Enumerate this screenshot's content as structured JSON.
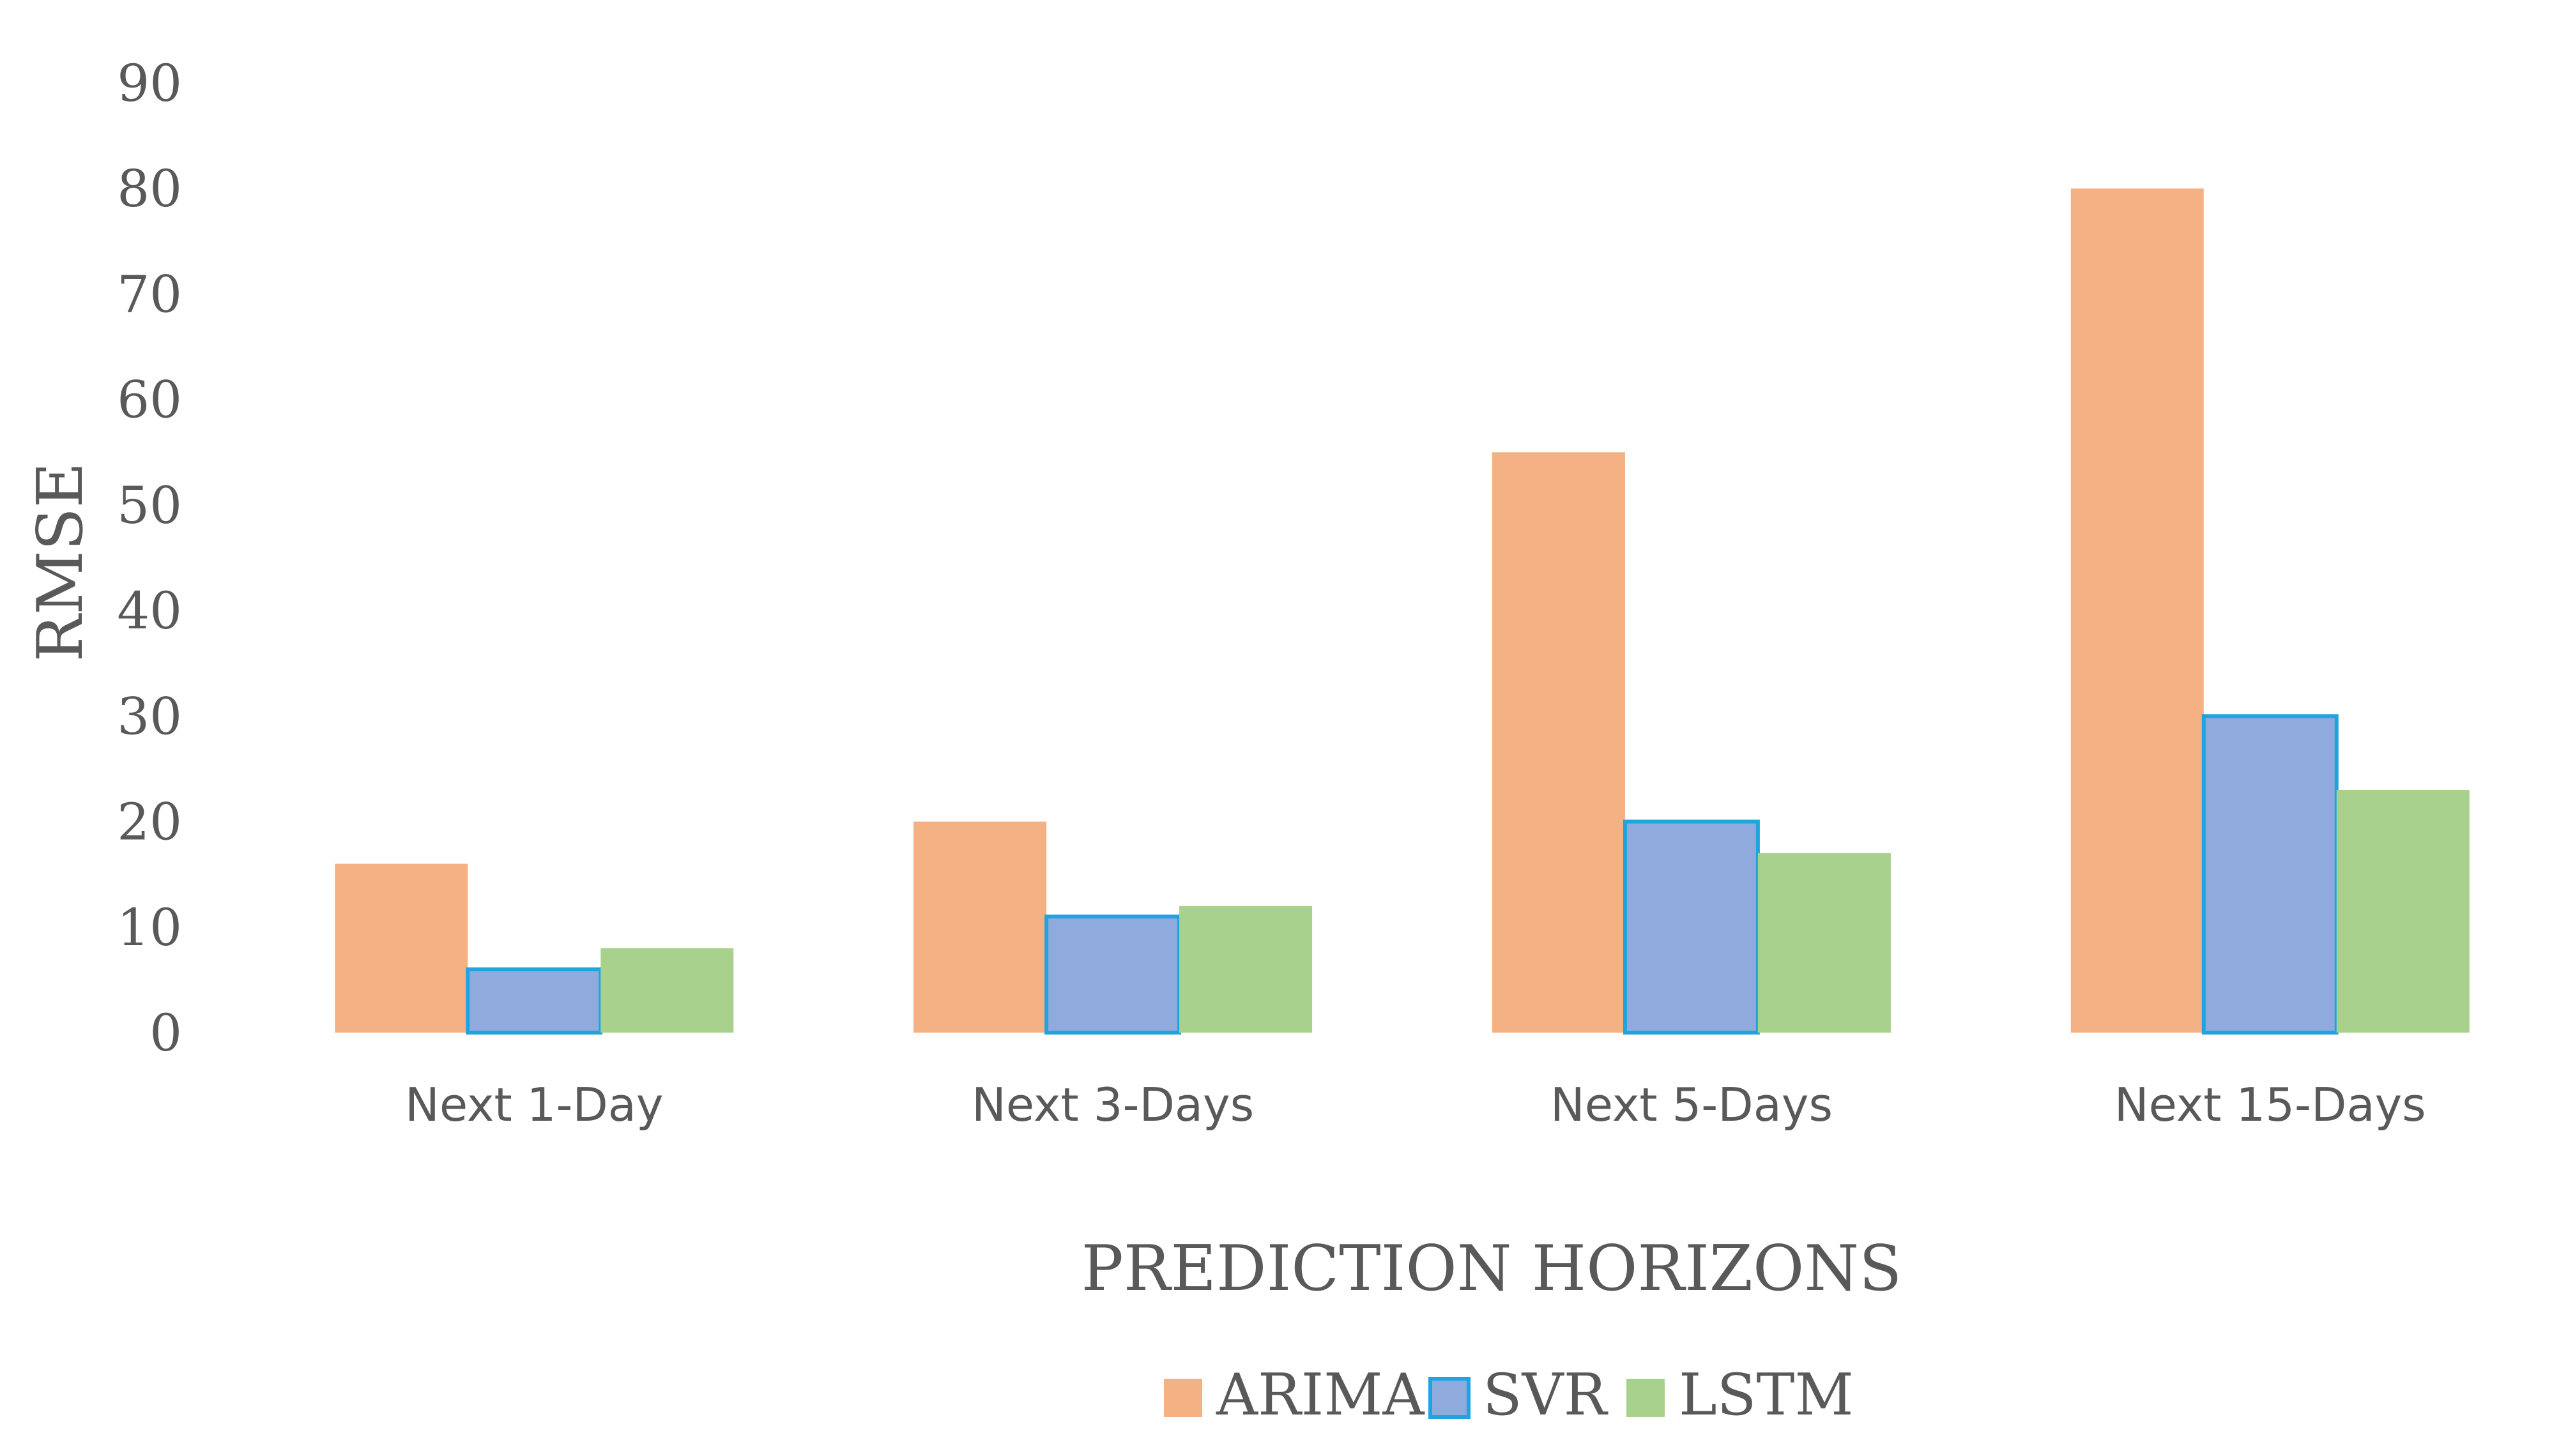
{
  "chart_data": {
    "type": "bar",
    "categories": [
      "Next 1-Day",
      "Next 3-Days",
      "Next 5-Days",
      "Next 15-Days"
    ],
    "series": [
      {
        "name": "ARIMA",
        "values": [
          16,
          20,
          55,
          80
        ],
        "color": "#F4B183",
        "stroke": "#F4B183"
      },
      {
        "name": "SVR",
        "values": [
          6,
          11,
          20,
          30
        ],
        "color": "#8FAADC",
        "stroke": "#1FA4E0"
      },
      {
        "name": "LSTM",
        "values": [
          8,
          12,
          17,
          23
        ],
        "color": "#A9D18E",
        "stroke": "#A9D18E"
      }
    ],
    "xlabel": "PREDICTION HORIZONS",
    "ylabel": "RMSE",
    "ylim": [
      0,
      90
    ],
    "yticks": [
      "0",
      "10",
      "20",
      "30",
      "40",
      "50",
      "60",
      "70",
      "80",
      "90"
    ],
    "grid": false,
    "legend_position": "bottom-center"
  }
}
